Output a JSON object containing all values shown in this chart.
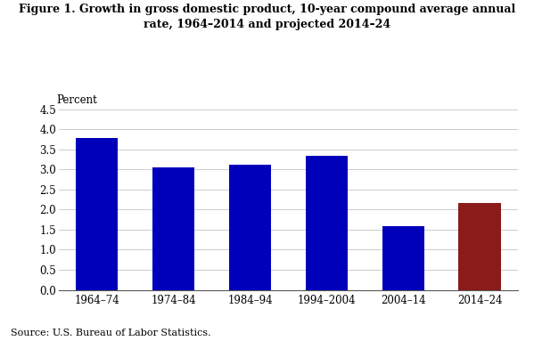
{
  "title_line1": "Figure 1. Growth in gross domestic product, 10-year compound average annual",
  "title_line2": "rate, 1964–2014 and projected 2014–24",
  "ylabel": "Percent",
  "categories": [
    "1964–74",
    "1974–84",
    "1984–94",
    "1994–2004",
    "2004–14",
    "2014–24"
  ],
  "values": [
    3.77,
    3.05,
    3.12,
    3.34,
    1.58,
    2.17
  ],
  "bar_colors": [
    "#0000BB",
    "#0000BB",
    "#0000BB",
    "#0000BB",
    "#0000BB",
    "#8B1A1A"
  ],
  "ylim": [
    0,
    4.5
  ],
  "yticks": [
    0.0,
    0.5,
    1.0,
    1.5,
    2.0,
    2.5,
    3.0,
    3.5,
    4.0,
    4.5
  ],
  "source_text": "Source: U.S. Bureau of Labor Statistics.",
  "background_color": "#FFFFFF",
  "grid_color": "#CCCCCC",
  "bar_width": 0.55
}
